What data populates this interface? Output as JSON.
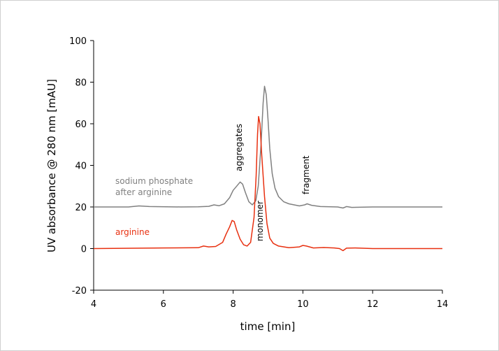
{
  "chart_data": {
    "type": "line",
    "xlabel": "time [min]",
    "ylabel": "UV absorbance @ 280 nm [mAU]",
    "xlim": [
      4,
      14
    ],
    "ylim": [
      -20,
      100
    ],
    "x_ticks": [
      "4",
      "6",
      "8",
      "10",
      "12",
      "14"
    ],
    "y_ticks": [
      "-20",
      "0",
      "20",
      "40",
      "60",
      "80",
      "100"
    ],
    "grid": false,
    "series": [
      {
        "name": "sodium phosphate after arginine",
        "color": "#808080",
        "points": [
          [
            4.0,
            20.0
          ],
          [
            5.0,
            20.0
          ],
          [
            5.3,
            20.5
          ],
          [
            5.6,
            20.2
          ],
          [
            6.5,
            20.0
          ],
          [
            7.0,
            20.1
          ],
          [
            7.3,
            20.3
          ],
          [
            7.45,
            21.0
          ],
          [
            7.6,
            20.6
          ],
          [
            7.75,
            21.5
          ],
          [
            7.9,
            24.5
          ],
          [
            8.0,
            28.0
          ],
          [
            8.1,
            30.0
          ],
          [
            8.2,
            32.0
          ],
          [
            8.27,
            31.0
          ],
          [
            8.35,
            27.0
          ],
          [
            8.45,
            22.5
          ],
          [
            8.55,
            21.0
          ],
          [
            8.65,
            23.0
          ],
          [
            8.72,
            30.0
          ],
          [
            8.8,
            50.0
          ],
          [
            8.86,
            70.0
          ],
          [
            8.9,
            78.0
          ],
          [
            8.95,
            74.0
          ],
          [
            9.0,
            62.0
          ],
          [
            9.05,
            48.0
          ],
          [
            9.12,
            36.0
          ],
          [
            9.2,
            29.0
          ],
          [
            9.3,
            25.0
          ],
          [
            9.45,
            22.5
          ],
          [
            9.6,
            21.5
          ],
          [
            9.9,
            20.5
          ],
          [
            10.05,
            21.0
          ],
          [
            10.12,
            21.5
          ],
          [
            10.25,
            20.8
          ],
          [
            10.5,
            20.2
          ],
          [
            11.0,
            20.0
          ],
          [
            11.15,
            19.5
          ],
          [
            11.25,
            20.2
          ],
          [
            11.4,
            19.8
          ],
          [
            12.0,
            20.0
          ],
          [
            14.0,
            20.0
          ]
        ]
      },
      {
        "name": "arginine",
        "color": "#e83010",
        "points": [
          [
            4.0,
            0.0
          ],
          [
            6.0,
            0.3
          ],
          [
            7.0,
            0.4
          ],
          [
            7.15,
            1.2
          ],
          [
            7.3,
            0.8
          ],
          [
            7.5,
            1.0
          ],
          [
            7.7,
            3.0
          ],
          [
            7.8,
            7.0
          ],
          [
            7.9,
            10.5
          ],
          [
            7.97,
            13.5
          ],
          [
            8.03,
            13.0
          ],
          [
            8.1,
            9.0
          ],
          [
            8.2,
            4.5
          ],
          [
            8.3,
            1.8
          ],
          [
            8.4,
            1.2
          ],
          [
            8.5,
            3.0
          ],
          [
            8.6,
            15.0
          ],
          [
            8.66,
            35.0
          ],
          [
            8.7,
            55.0
          ],
          [
            8.73,
            63.5
          ],
          [
            8.77,
            60.0
          ],
          [
            8.82,
            45.0
          ],
          [
            8.9,
            25.0
          ],
          [
            8.97,
            12.0
          ],
          [
            9.05,
            5.0
          ],
          [
            9.15,
            2.5
          ],
          [
            9.3,
            1.2
          ],
          [
            9.6,
            0.4
          ],
          [
            9.9,
            0.8
          ],
          [
            10.0,
            1.5
          ],
          [
            10.1,
            1.2
          ],
          [
            10.3,
            0.3
          ],
          [
            10.6,
            0.5
          ],
          [
            10.9,
            0.3
          ],
          [
            11.05,
            0.0
          ],
          [
            11.15,
            -1.0
          ],
          [
            11.25,
            0.2
          ],
          [
            11.5,
            0.3
          ],
          [
            12.0,
            0.0
          ],
          [
            14.0,
            0.0
          ]
        ]
      }
    ],
    "labels": {
      "series_label_gray_line1": "sodium phosphate",
      "series_label_gray_line2": "after arginine",
      "series_label_red": "arginine",
      "peak_aggregates": "aggregates",
      "peak_monomer": "monomer",
      "peak_fragment": "fragment"
    }
  }
}
